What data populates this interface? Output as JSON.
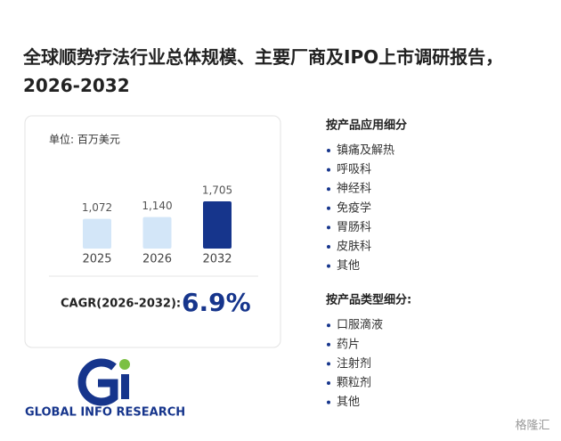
{
  "chart_data": {
    "type": "bar",
    "title": "全球顺势疗法行业总体规模、主要厂商及IPO上市调研报告，2026-2032",
    "unit_label": "单位: 百万美元",
    "categories": [
      "2025",
      "2026",
      "2032"
    ],
    "values": [
      1072,
      1140,
      1705
    ],
    "value_labels": [
      "1,072",
      "1,140",
      "1,705"
    ],
    "colors": [
      "#d3e6f8",
      "#d3e6f8",
      "#16358c"
    ],
    "cagr_label": "CAGR(2026-2032):",
    "cagr_value": "6.9%"
  },
  "sidebar": {
    "sections": [
      {
        "heading": "按产品应用细分",
        "items": [
          "镇痛及解热",
          "呼吸科",
          "神经科",
          "免疫学",
          "胃肠科",
          "皮肤科",
          "其他"
        ]
      },
      {
        "heading": "按产品类型细分:",
        "items": [
          "口服滴液",
          "药片",
          "注射剂",
          "颗粒剂",
          "其他"
        ]
      }
    ]
  },
  "logo": {
    "text": "GLOBAL INFO RESEARCH"
  },
  "watermark": "格隆汇"
}
